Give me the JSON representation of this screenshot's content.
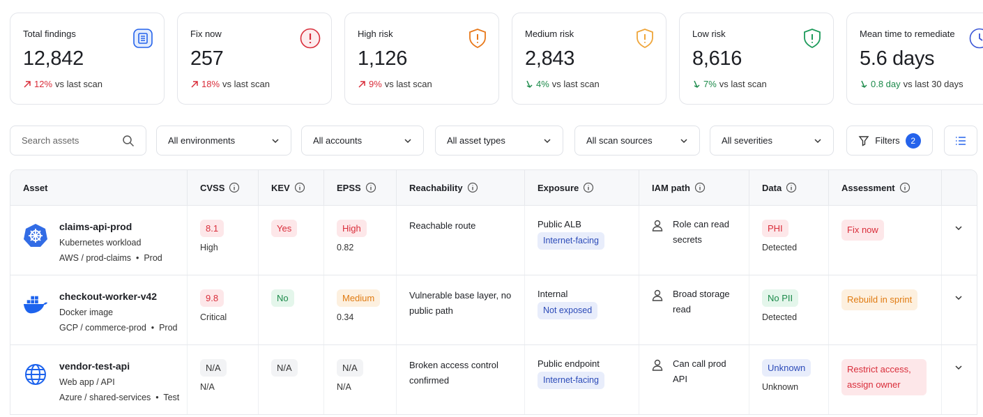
{
  "cards": [
    {
      "title": "Total findings",
      "value": "12,842",
      "delta": "12%",
      "note": "vs last scan",
      "trend": "up"
    },
    {
      "title": "Fix now",
      "value": "257",
      "delta": "18%",
      "note": "vs last scan",
      "trend": "up"
    },
    {
      "title": "High risk",
      "value": "1,126",
      "delta": "9%",
      "note": "vs last scan",
      "trend": "up"
    },
    {
      "title": "Medium risk",
      "value": "2,843",
      "delta": "4%",
      "note": "vs last scan",
      "trend": "down"
    },
    {
      "title": "Low risk",
      "value": "8,616",
      "delta": "7%",
      "note": "vs last scan",
      "trend": "down"
    },
    {
      "title": "Mean time to remediate",
      "value": "5.6 days",
      "delta": "0.8 day",
      "note": "vs last 30 days",
      "trend": "down"
    }
  ],
  "filters": {
    "search": "Search assets",
    "dropdowns": [
      "All environments",
      "All accounts",
      "All asset types",
      "All scan sources",
      "All severities"
    ],
    "button": "Filters",
    "count": 2
  },
  "table": {
    "columns": [
      "Asset",
      "CVSS",
      "KEV",
      "EPSS",
      "Reachability",
      "Exposure",
      "IAM path",
      "Data",
      "Assessment"
    ],
    "rows": [
      {
        "name": "claims-api-prod",
        "kind": "Kubernetes workload",
        "account": "AWS / prod-claims",
        "env": "Prod",
        "cvss": {
          "value": "8.1",
          "label": "High",
          "tone": "red"
        },
        "kev": {
          "value": "Yes",
          "tone": "red"
        },
        "epss": {
          "value": "High",
          "label": "0.82",
          "tone": "red"
        },
        "reachability": "Reachable route",
        "exposure": {
          "value": "Public ALB",
          "tag": "Internet-facing"
        },
        "iam": "Role can read secrets",
        "data": {
          "value": "PHI",
          "label": "Detected",
          "tone": "red"
        },
        "assessment": {
          "value": "Fix now",
          "tone": "red"
        }
      },
      {
        "name": "checkout-worker-v42",
        "kind": "Docker image",
        "account": "GCP / commerce-prod",
        "env": "Prod",
        "cvss": {
          "value": "9.8",
          "label": "Critical",
          "tone": "red"
        },
        "kev": {
          "value": "No",
          "tone": "green"
        },
        "epss": {
          "value": "Medium",
          "label": "0.34",
          "tone": "orange"
        },
        "reachability": "Vulnerable base layer, no public path",
        "exposure": {
          "value": "Internal",
          "tag": "Not exposed"
        },
        "iam": "Broad storage read",
        "data": {
          "value": "No PII",
          "label": "Detected",
          "tone": "green"
        },
        "assessment": {
          "value": "Rebuild in sprint",
          "tone": "orange"
        }
      },
      {
        "name": "vendor-test-api",
        "kind": "Web app / API",
        "account": "Azure / shared-services",
        "env": "Test",
        "cvss": {
          "value": "N/A",
          "label": "N/A",
          "tone": "gray"
        },
        "kev": {
          "value": "N/A",
          "tone": "gray"
        },
        "epss": {
          "value": "N/A",
          "label": "N/A",
          "tone": "gray"
        },
        "reachability": "Broken access control confirmed",
        "exposure": {
          "value": "Public endpoint",
          "tag": "Internet-facing"
        },
        "iam": "Can call prod API",
        "data": {
          "value": "Unknown",
          "label": "Unknown",
          "tone": "blue"
        },
        "assessment": {
          "value": "Restrict access, assign owner",
          "tone": "red"
        }
      }
    ]
  }
}
